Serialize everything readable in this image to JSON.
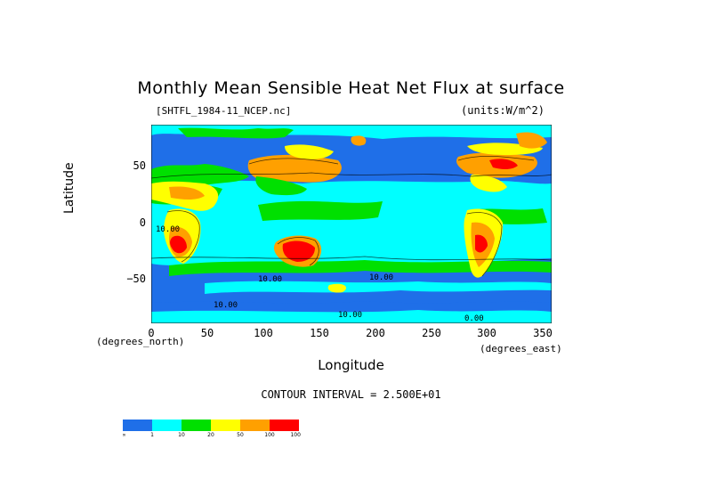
{
  "title": "Monthly Mean Sensible Heat Net Flux at surface",
  "file_label": "[SHTFL_1984-11_NCEP.nc]",
  "units_label": "(units:W/m^2)",
  "y_axis": {
    "label": "Latitude",
    "note": "(degrees_north)",
    "ticks": [
      "50",
      "0",
      "−50"
    ]
  },
  "x_axis": {
    "label": "Longitude",
    "note": "(degrees_east)",
    "ticks": [
      "0",
      "50",
      "100",
      "150",
      "200",
      "250",
      "300",
      "350"
    ]
  },
  "contour_interval": "CONTOUR INTERVAL = 2.500E+01",
  "contour_labels": [
    "10.00",
    "10.00",
    "10.00",
    "10.00",
    "10.00",
    "0.00"
  ],
  "legend": {
    "colors": [
      "#1f6fe8",
      "#00ffff",
      "#00e000",
      "#ffff00",
      "#ffa000",
      "#ff0000"
    ],
    "labels": [
      "-∞",
      "1",
      "10",
      "20",
      "50",
      "100",
      "10000"
    ]
  },
  "chart_data": {
    "type": "heatmap",
    "title": "Monthly Mean Sensible Heat Net Flux at surface",
    "xlabel": "Longitude",
    "ylabel": "Latitude",
    "xlim": [
      0,
      360
    ],
    "ylim": [
      -90,
      90
    ],
    "x_ticks": [
      0,
      50,
      100,
      150,
      200,
      250,
      300,
      350
    ],
    "y_ticks": [
      50,
      0,
      -50
    ],
    "color_bins": [
      {
        "range": [
          "-inf",
          1
        ],
        "color": "#1f6fe8"
      },
      {
        "range": [
          1,
          10
        ],
        "color": "#00ffff"
      },
      {
        "range": [
          10,
          20
        ],
        "color": "#00e000"
      },
      {
        "range": [
          20,
          50
        ],
        "color": "#ffff00"
      },
      {
        "range": [
          50,
          100
        ],
        "color": "#ffa000"
      },
      {
        "range": [
          100,
          10000
        ],
        "color": "#ff0000"
      }
    ],
    "contour_interval": 25
  }
}
